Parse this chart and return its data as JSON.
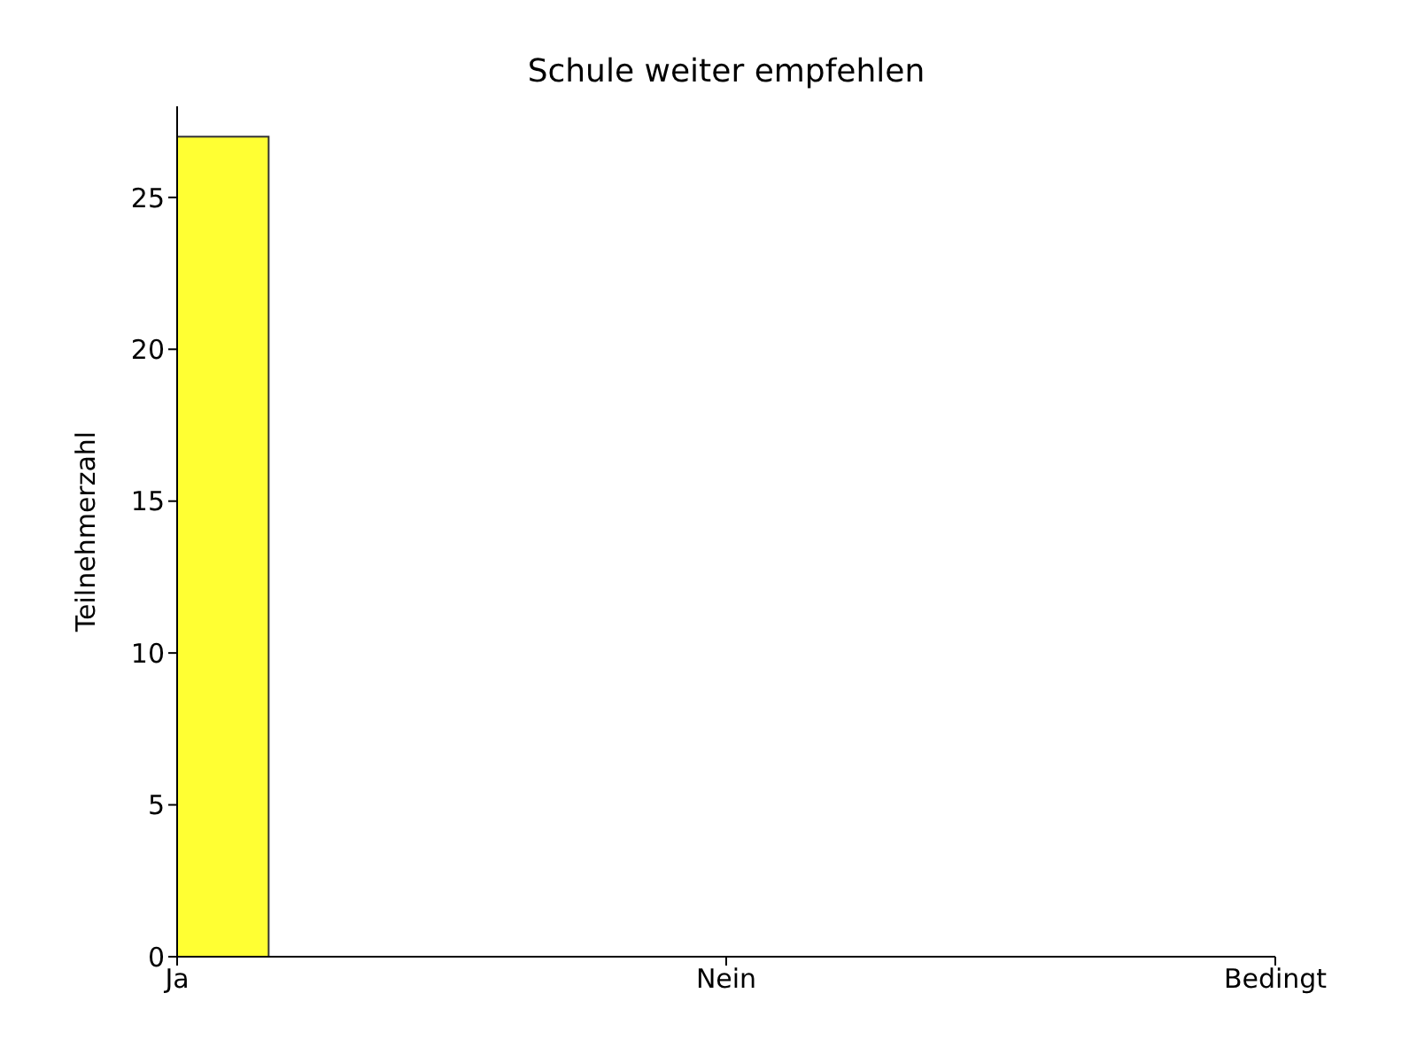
{
  "chart_data": {
    "type": "bar",
    "title": "Schule weiter empfehlen",
    "ylabel": "Teilnehmerzahl",
    "categories": [
      "Ja",
      "Nein",
      "Bedingt"
    ],
    "values": [
      27,
      0,
      0
    ],
    "color": "#ffff33",
    "ylim": [
      0,
      28
    ],
    "yticks": [
      0,
      5,
      10,
      15,
      20,
      25
    ],
    "grid": false
  }
}
